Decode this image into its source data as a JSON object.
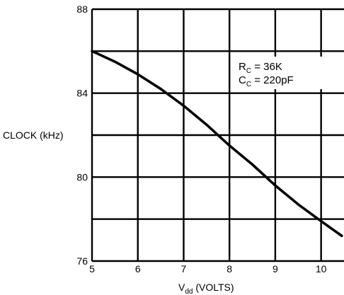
{
  "chart_data": {
    "type": "line",
    "title": "",
    "xlabel": {
      "main": "V",
      "sub": "dd",
      "rest": " (VOLTS)"
    },
    "ylabel": "CLOCK (kHz)",
    "xlim": [
      5,
      10.5
    ],
    "ylim": [
      76,
      88
    ],
    "xticks": [
      5,
      6,
      7,
      8,
      9,
      10
    ],
    "yticks": [
      76,
      80,
      84,
      88
    ],
    "grid": true,
    "annotations": [
      {
        "main": "R",
        "sub": "C",
        "rest": " = 36K"
      },
      {
        "main": "C",
        "sub": "C",
        "rest": " = 220pF"
      }
    ],
    "series": [
      {
        "x": [
          5.0,
          5.5,
          6.0,
          6.5,
          7.0,
          7.5,
          8.0,
          8.5,
          9.0,
          9.5,
          10.0,
          10.45
        ],
        "y": [
          86.0,
          85.5,
          84.9,
          84.2,
          83.4,
          82.5,
          81.5,
          80.6,
          79.6,
          78.7,
          77.9,
          77.2
        ]
      }
    ]
  }
}
